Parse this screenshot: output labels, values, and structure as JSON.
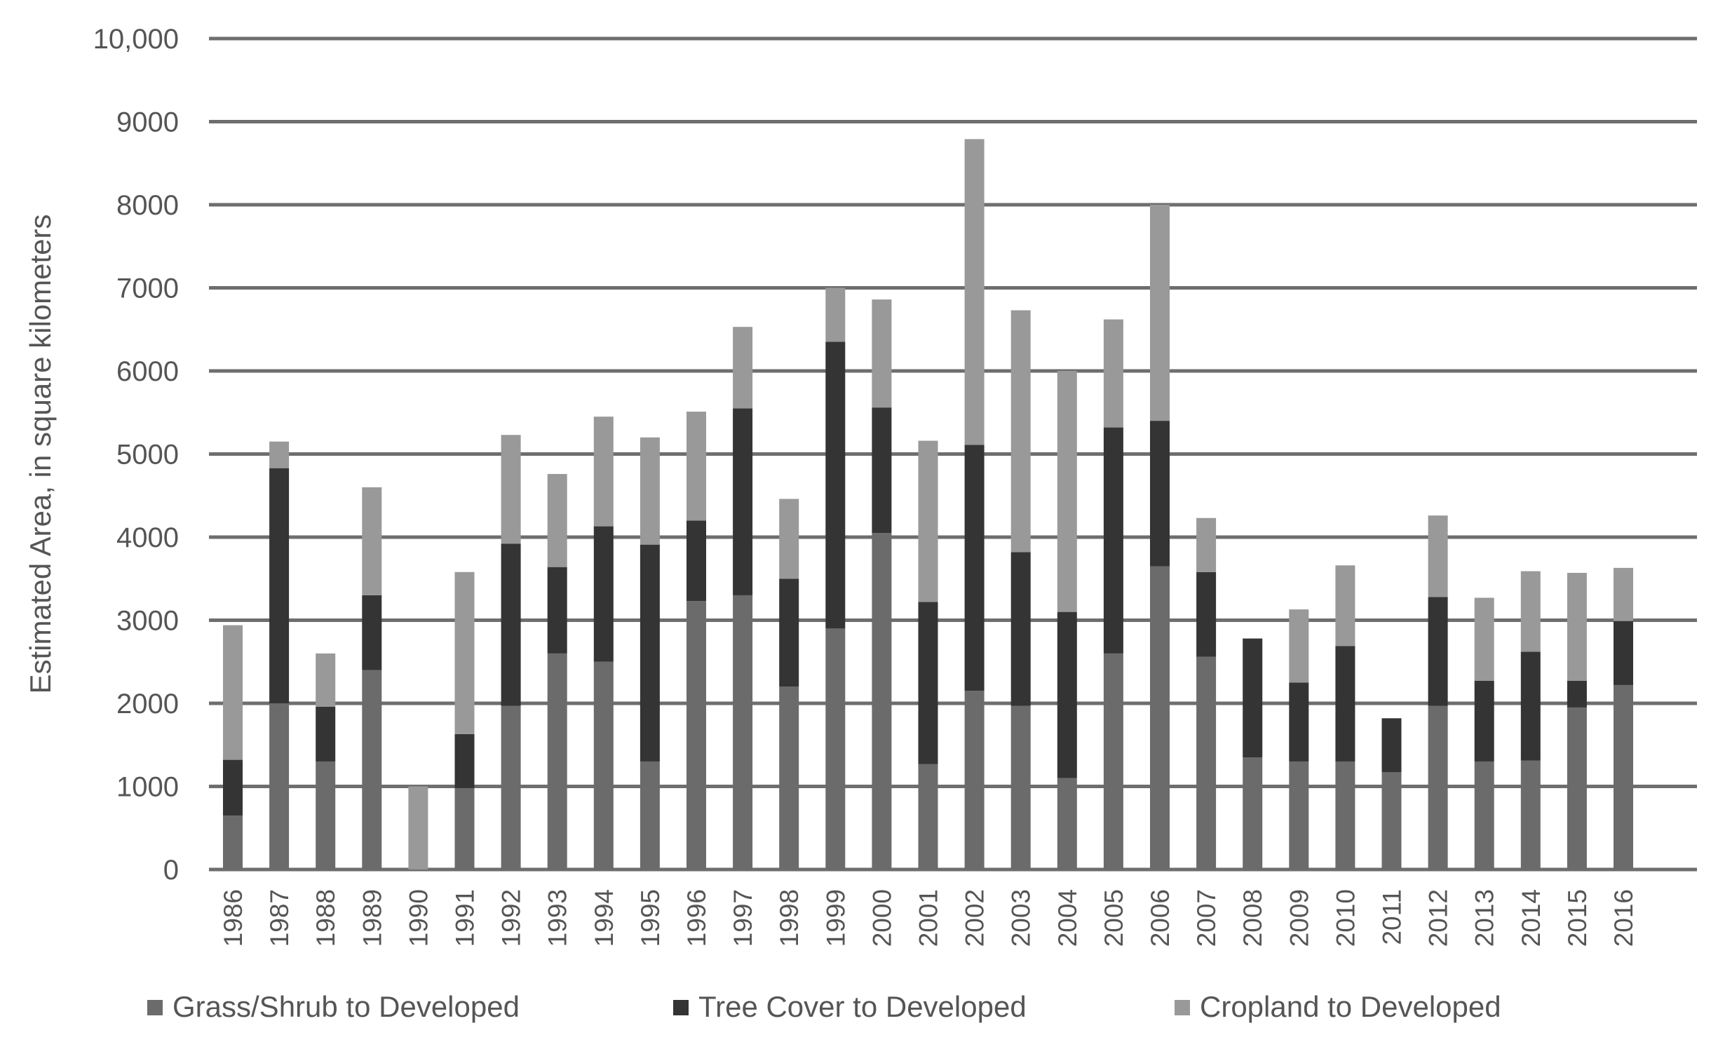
{
  "chart_data": {
    "type": "bar",
    "stacked": true,
    "title": "",
    "xlabel": "",
    "ylabel": "Estimated Area, in square kilometers",
    "ylim": [
      0,
      10000
    ],
    "yticks": [
      0,
      1000,
      2000,
      3000,
      4000,
      5000,
      6000,
      7000,
      8000,
      9000,
      10000
    ],
    "ytick_labels": [
      "0",
      "1000",
      "2000",
      "3000",
      "4000",
      "5000",
      "6000",
      "7000",
      "8000",
      "9000",
      "10,000"
    ],
    "grid": true,
    "legend_position": "bottom",
    "categories": [
      "1986",
      "1987",
      "1988",
      "1989",
      "1990",
      "1991",
      "1992",
      "1993",
      "1994",
      "1995",
      "1996",
      "1997",
      "1998",
      "1999",
      "2000",
      "2001",
      "2002",
      "2003",
      "2004",
      "2005",
      "2006",
      "2007",
      "2008",
      "2009",
      "2010",
      "2011",
      "2012",
      "2013",
      "2014",
      "2015",
      "2016"
    ],
    "series": [
      {
        "name": "Grass/Shrub to Developed",
        "color": "#6b6b6b",
        "values": [
          650,
          2000,
          1300,
          2400,
          0,
          980,
          1970,
          2600,
          2500,
          1300,
          3230,
          3300,
          2200,
          2900,
          4050,
          1270,
          2150,
          1970,
          1100,
          2600,
          3650,
          2560,
          1350,
          1300,
          1300,
          1170,
          1970,
          1300,
          1310,
          1950,
          2220
        ]
      },
      {
        "name": "Tree Cover to Developed",
        "color": "#343434",
        "values": [
          670,
          2830,
          660,
          900,
          0,
          650,
          1950,
          1040,
          1630,
          2610,
          970,
          2250,
          1300,
          3450,
          1510,
          1950,
          2960,
          1850,
          2000,
          2720,
          1750,
          1020,
          1430,
          950,
          1390,
          650,
          1310,
          970,
          1310,
          320,
          770
        ]
      },
      {
        "name": "Cropland to Developed",
        "color": "#999999",
        "values": [
          1620,
          320,
          640,
          1300,
          1000,
          1950,
          1310,
          1120,
          1320,
          1290,
          1310,
          980,
          960,
          650,
          1300,
          1940,
          3680,
          2910,
          2900,
          1300,
          2600,
          650,
          0,
          880,
          970,
          0,
          980,
          1000,
          970,
          1300,
          640
        ]
      }
    ]
  }
}
